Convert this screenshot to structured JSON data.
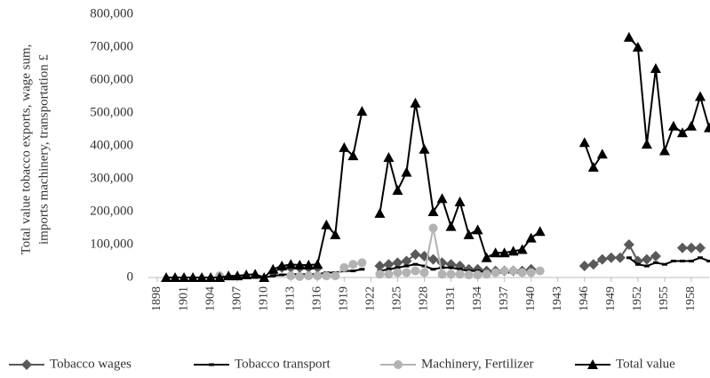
{
  "chart_data": {
    "type": "line",
    "y_label": [
      "Total value tobacco exports, wage sum,",
      "imports machinery, transportation £"
    ],
    "x": [
      1899,
      1900,
      1901,
      1902,
      1903,
      1904,
      1905,
      1906,
      1907,
      1908,
      1909,
      1910,
      1911,
      1912,
      1913,
      1914,
      1915,
      1916,
      1917,
      1918,
      1919,
      1920,
      1921,
      1922,
      1923,
      1924,
      1925,
      1926,
      1927,
      1928,
      1929,
      1930,
      1931,
      1932,
      1933,
      1934,
      1935,
      1936,
      1937,
      1938,
      1939,
      1940,
      1941,
      1942,
      1943,
      1944,
      1945,
      1946,
      1947,
      1948,
      1949,
      1950,
      1951,
      1952,
      1953,
      1954,
      1955,
      1956,
      1957,
      1958,
      1959,
      1960
    ],
    "series": [
      {
        "name": "Tobacco wages",
        "color": "#595959",
        "marker": "diamond",
        "values": [
          null,
          null,
          null,
          null,
          null,
          null,
          null,
          null,
          null,
          null,
          null,
          null,
          15000,
          30000,
          30000,
          30000,
          30000,
          30000,
          null,
          null,
          null,
          null,
          null,
          null,
          35000,
          40000,
          45000,
          50000,
          70000,
          65000,
          55000,
          45000,
          40000,
          35000,
          25000,
          25000,
          20000,
          20000,
          20000,
          20000,
          20000,
          25000,
          null,
          null,
          null,
          null,
          null,
          35000,
          40000,
          55000,
          60000,
          60000,
          100000,
          50000,
          55000,
          65000,
          null,
          null,
          90000,
          90000,
          90000,
          null
        ]
      },
      {
        "name": "Tobacco transport",
        "color": "#000000",
        "marker": "dash",
        "values": [
          0,
          0,
          0,
          0,
          0,
          0,
          0,
          0,
          0,
          0,
          0,
          0,
          5000,
          8000,
          10000,
          10000,
          10000,
          10000,
          15000,
          15000,
          20000,
          20000,
          25000,
          null,
          20000,
          25000,
          30000,
          35000,
          40000,
          35000,
          25000,
          30000,
          30000,
          25000,
          20000,
          20000,
          15000,
          15000,
          15000,
          15000,
          15000,
          15000,
          null,
          null,
          null,
          null,
          null,
          null,
          null,
          null,
          null,
          null,
          60000,
          40000,
          35000,
          45000,
          40000,
          50000,
          50000,
          50000,
          60000,
          50000
        ]
      },
      {
        "name": "Machinery, Fertilizer",
        "color": "#b3b3b3",
        "marker": "circle",
        "values": [
          null,
          null,
          null,
          null,
          null,
          null,
          5000,
          null,
          null,
          null,
          null,
          null,
          null,
          null,
          5000,
          3000,
          5000,
          5000,
          5000,
          5000,
          30000,
          40000,
          45000,
          null,
          10000,
          10000,
          15000,
          15000,
          20000,
          15000,
          150000,
          10000,
          10000,
          10000,
          8000,
          8000,
          10000,
          15000,
          20000,
          20000,
          15000,
          15000,
          20000,
          null,
          null,
          null,
          null,
          null,
          null,
          null,
          null,
          null,
          null,
          null,
          null,
          null,
          null,
          null,
          null,
          null,
          null,
          null
        ]
      },
      {
        "name": "Total value",
        "color": "#000000",
        "marker": "triangle",
        "values": [
          0,
          0,
          0,
          0,
          0,
          0,
          0,
          5000,
          5000,
          8000,
          10000,
          0,
          25000,
          35000,
          40000,
          38000,
          38000,
          40000,
          160000,
          130000,
          395000,
          370000,
          505000,
          null,
          195000,
          365000,
          265000,
          320000,
          530000,
          390000,
          200000,
          240000,
          155000,
          230000,
          130000,
          145000,
          60000,
          75000,
          75000,
          80000,
          85000,
          120000,
          140000,
          null,
          null,
          null,
          null,
          410000,
          335000,
          375000,
          null,
          null,
          730000,
          700000,
          405000,
          635000,
          385000,
          460000,
          440000,
          460000,
          550000,
          455000
        ]
      }
    ],
    "xlim": [
      1897,
      1960
    ],
    "xticks": [
      1898,
      1901,
      1904,
      1907,
      1910,
      1913,
      1916,
      1919,
      1922,
      1925,
      1928,
      1931,
      1934,
      1937,
      1940,
      1943,
      1946,
      1949,
      1952,
      1955,
      1958
    ],
    "ylim": [
      0,
      800000
    ],
    "yticks": [
      0,
      {
        "value": 100000,
        "label": "100,000"
      },
      {
        "value": 200000,
        "label": "200,000"
      },
      {
        "value": 300000,
        "label": "300,000"
      },
      {
        "value": 400000,
        "label": "400,000"
      },
      {
        "value": 500000,
        "label": "500,000"
      },
      {
        "value": 600000,
        "label": "600,000"
      },
      {
        "value": 700000,
        "label": "700,000"
      },
      {
        "value": 800000,
        "label": "800,000"
      }
    ],
    "legend": "bottom"
  }
}
